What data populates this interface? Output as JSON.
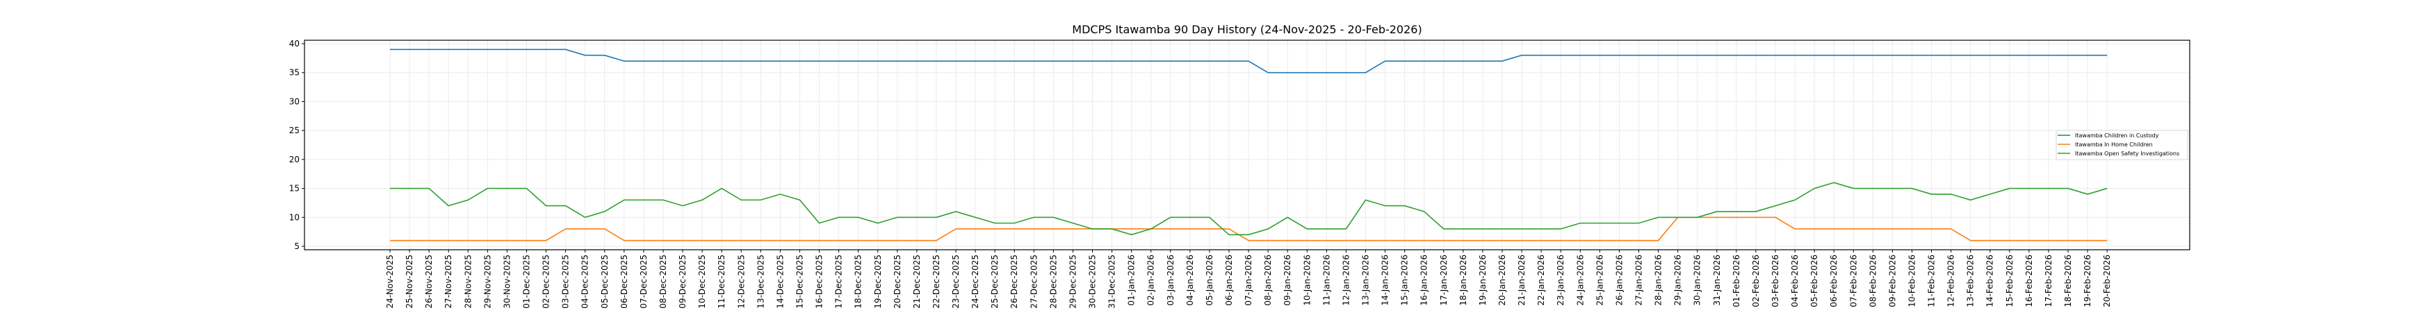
{
  "chart_data": {
    "type": "line",
    "title": "MDCPS Itawamba 90 Day History (24-Nov-2025 - 20-Feb-2026)",
    "xlabel": "",
    "ylabel": "",
    "ylim": [
      4.4,
      40.6
    ],
    "yticks": [
      5,
      10,
      15,
      20,
      25,
      30,
      35,
      40
    ],
    "grid": true,
    "legend_position": "center-right",
    "x": [
      "24-Nov-2025",
      "25-Nov-2025",
      "26-Nov-2025",
      "27-Nov-2025",
      "28-Nov-2025",
      "29-Nov-2025",
      "30-Nov-2025",
      "01-Dec-2025",
      "02-Dec-2025",
      "03-Dec-2025",
      "04-Dec-2025",
      "05-Dec-2025",
      "06-Dec-2025",
      "07-Dec-2025",
      "08-Dec-2025",
      "09-Dec-2025",
      "10-Dec-2025",
      "11-Dec-2025",
      "12-Dec-2025",
      "13-Dec-2025",
      "14-Dec-2025",
      "15-Dec-2025",
      "16-Dec-2025",
      "17-Dec-2025",
      "18-Dec-2025",
      "19-Dec-2025",
      "20-Dec-2025",
      "21-Dec-2025",
      "22-Dec-2025",
      "23-Dec-2025",
      "24-Dec-2025",
      "25-Dec-2025",
      "26-Dec-2025",
      "27-Dec-2025",
      "28-Dec-2025",
      "29-Dec-2025",
      "30-Dec-2025",
      "31-Dec-2025",
      "01-Jan-2026",
      "02-Jan-2026",
      "03-Jan-2026",
      "04-Jan-2026",
      "05-Jan-2026",
      "06-Jan-2026",
      "07-Jan-2026",
      "08-Jan-2026",
      "09-Jan-2026",
      "10-Jan-2026",
      "11-Jan-2026",
      "12-Jan-2026",
      "13-Jan-2026",
      "14-Jan-2026",
      "15-Jan-2026",
      "16-Jan-2026",
      "17-Jan-2026",
      "18-Jan-2026",
      "19-Jan-2026",
      "20-Jan-2026",
      "21-Jan-2026",
      "22-Jan-2026",
      "23-Jan-2026",
      "24-Jan-2026",
      "25-Jan-2026",
      "26-Jan-2026",
      "27-Jan-2026",
      "28-Jan-2026",
      "29-Jan-2026",
      "30-Jan-2026",
      "31-Jan-2026",
      "01-Feb-2026",
      "02-Feb-2026",
      "03-Feb-2026",
      "04-Feb-2026",
      "05-Feb-2026",
      "06-Feb-2026",
      "07-Feb-2026",
      "08-Feb-2026",
      "09-Feb-2026",
      "10-Feb-2026",
      "11-Feb-2026",
      "12-Feb-2026",
      "13-Feb-2026",
      "14-Feb-2026",
      "15-Feb-2026",
      "16-Feb-2026",
      "17-Feb-2026",
      "18-Feb-2026",
      "19-Feb-2026",
      "20-Feb-2026"
    ],
    "series": [
      {
        "name": "Itawamba Children in Custody",
        "color": "#1f77b4",
        "values": [
          39,
          39,
          39,
          39,
          39,
          39,
          39,
          39,
          39,
          39,
          38,
          38,
          37,
          37,
          37,
          37,
          37,
          37,
          37,
          37,
          37,
          37,
          37,
          37,
          37,
          37,
          37,
          37,
          37,
          37,
          37,
          37,
          37,
          37,
          37,
          37,
          37,
          37,
          37,
          37,
          37,
          37,
          37,
          37,
          37,
          35,
          35,
          35,
          35,
          35,
          35,
          37,
          37,
          37,
          37,
          37,
          37,
          37,
          38,
          38,
          38,
          38,
          38,
          38,
          38,
          38,
          38,
          38,
          38,
          38,
          38,
          38,
          38,
          38,
          38,
          38,
          38,
          38,
          38,
          38,
          38,
          38,
          38,
          38,
          38,
          38,
          38,
          38,
          38
        ]
      },
      {
        "name": "Itawamba In Home Children",
        "color": "#ff7f0e",
        "values": [
          6,
          6,
          6,
          6,
          6,
          6,
          6,
          6,
          6,
          8,
          8,
          8,
          6,
          6,
          6,
          6,
          6,
          6,
          6,
          6,
          6,
          6,
          6,
          6,
          6,
          6,
          6,
          6,
          6,
          8,
          8,
          8,
          8,
          8,
          8,
          8,
          8,
          8,
          8,
          8,
          8,
          8,
          8,
          8,
          6,
          6,
          6,
          6,
          6,
          6,
          6,
          6,
          6,
          6,
          6,
          6,
          6,
          6,
          6,
          6,
          6,
          6,
          6,
          6,
          6,
          6,
          10,
          10,
          10,
          10,
          10,
          10,
          8,
          8,
          8,
          8,
          8,
          8,
          8,
          8,
          8,
          6,
          6,
          6,
          6,
          6,
          6,
          6,
          6
        ]
      },
      {
        "name": "Itawamba Open Safety Investigations",
        "color": "#2ca02c",
        "values": [
          15,
          15,
          15,
          12,
          13,
          15,
          15,
          15,
          12,
          12,
          10,
          11,
          13,
          13,
          13,
          12,
          13,
          15,
          13,
          13,
          14,
          13,
          9,
          10,
          10,
          9,
          10,
          10,
          10,
          11,
          10,
          9,
          9,
          10,
          10,
          9,
          8,
          8,
          7,
          8,
          10,
          10,
          10,
          7,
          7,
          8,
          10,
          8,
          8,
          8,
          13,
          12,
          12,
          11,
          8,
          8,
          8,
          8,
          8,
          8,
          8,
          9,
          9,
          9,
          9,
          10,
          10,
          10,
          11,
          11,
          11,
          12,
          13,
          15,
          16,
          15,
          15,
          15,
          15,
          14,
          14,
          13,
          14,
          15,
          15,
          15,
          15,
          14,
          15
        ]
      }
    ]
  }
}
